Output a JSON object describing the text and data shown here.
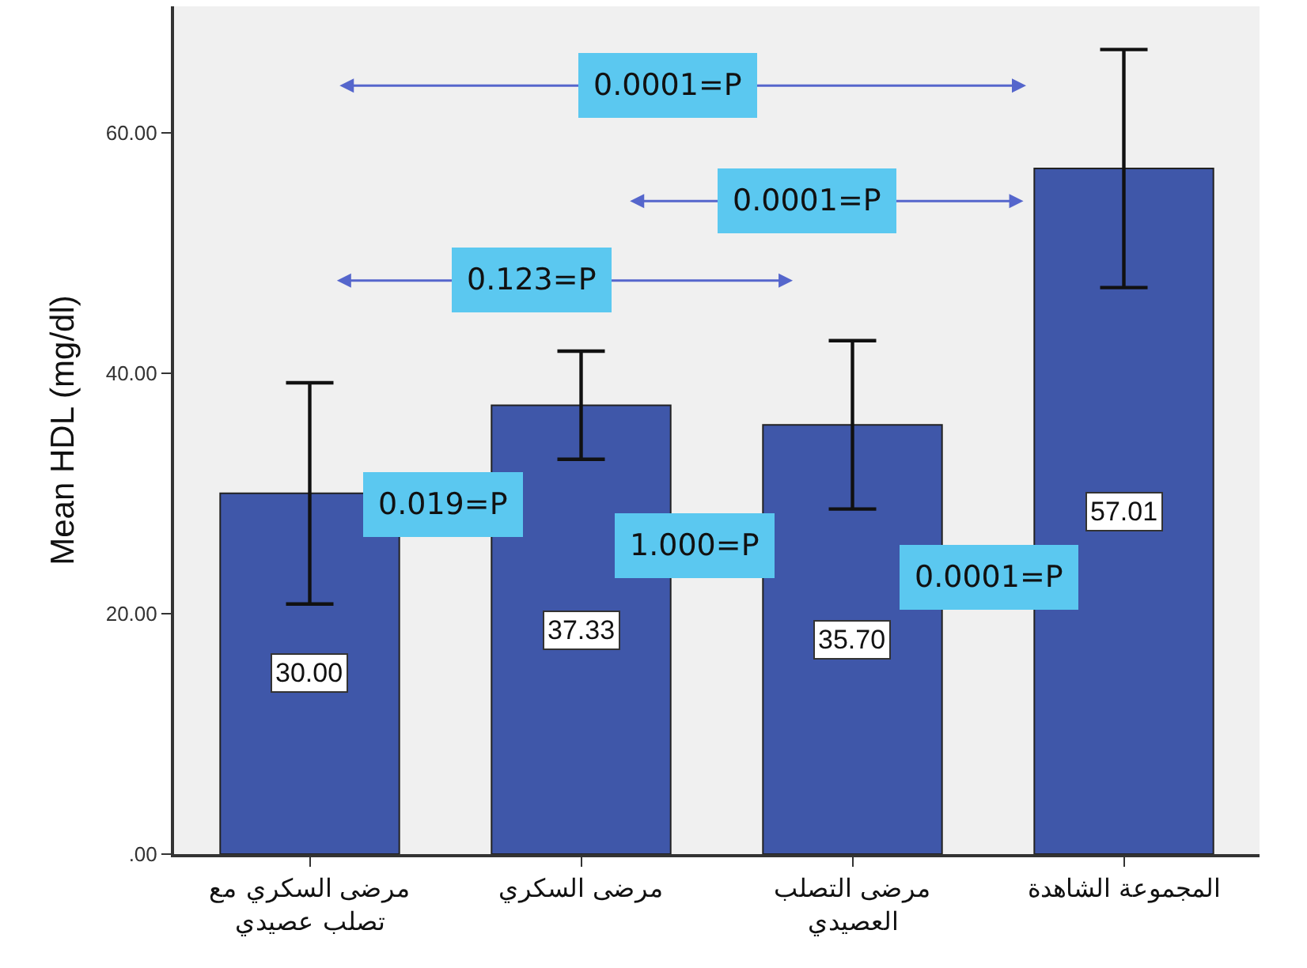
{
  "chart_data": {
    "type": "bar",
    "ylabel": "Mean HDL (mg/dl)",
    "categories": [
      "مرضى السكري مع تصلب عصيدي",
      "مرضى السكري",
      "مرضى التصلب العصيدي",
      "المجموعة الشاهدة"
    ],
    "values": [
      30.0,
      37.33,
      35.7,
      57.01
    ],
    "errors": [
      9.2,
      4.5,
      7.0,
      9.9
    ],
    "color": "#3f57a9",
    "value_labels": [
      "30.00",
      "37.33",
      "35.70",
      "57.01"
    ],
    "ylim": [
      0,
      70.5
    ],
    "yticks": [
      {
        "value": 0,
        "label": ".00"
      },
      {
        "value": 20,
        "label": "20.00"
      },
      {
        "value": 40,
        "label": "40.00"
      },
      {
        "value": 60,
        "label": "60.00"
      }
    ],
    "grid": false,
    "legend": false,
    "annotations": [
      "0.0001=P",
      "0.0001=P",
      "0.123=P",
      "0.019=P",
      "1.000=P",
      "0.0001=P"
    ]
  }
}
